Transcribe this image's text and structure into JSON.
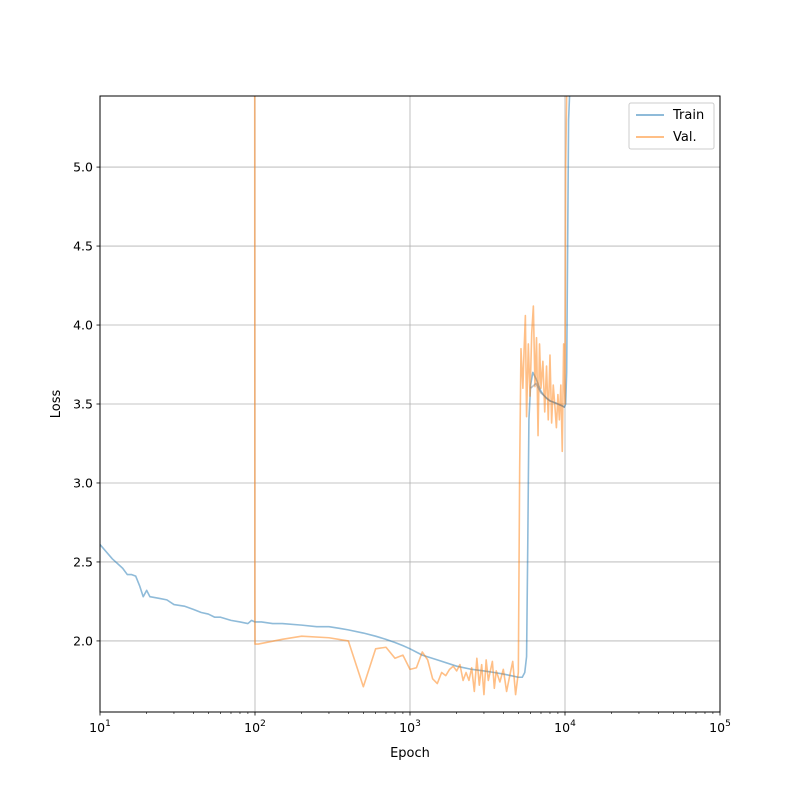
{
  "chart_data": {
    "type": "line",
    "title": "",
    "xlabel": "Epoch",
    "ylabel": "Loss",
    "xscale": "log",
    "xlim": [
      10,
      100000
    ],
    "ylim": [
      1.55,
      5.45
    ],
    "grid": true,
    "legend_position": "top-right",
    "x_ticks": [
      {
        "value": 10,
        "base": "10",
        "exp": "1"
      },
      {
        "value": 100,
        "base": "10",
        "exp": "2"
      },
      {
        "value": 1000,
        "base": "10",
        "exp": "3"
      },
      {
        "value": 10000,
        "base": "10",
        "exp": "4"
      },
      {
        "value": 100000,
        "base": "10",
        "exp": "5"
      }
    ],
    "y_ticks": [
      "2.0",
      "2.5",
      "3.0",
      "3.5",
      "4.0",
      "4.5",
      "5.0"
    ],
    "series": [
      {
        "name": "Train",
        "color": "#1f77b4",
        "opacity": 0.5,
        "points": [
          [
            10,
            2.61
          ],
          [
            12,
            2.52
          ],
          [
            14,
            2.46
          ],
          [
            15,
            2.42
          ],
          [
            16,
            2.42
          ],
          [
            17,
            2.41
          ],
          [
            18,
            2.35
          ],
          [
            19,
            2.28
          ],
          [
            20,
            2.32
          ],
          [
            21,
            2.28
          ],
          [
            24,
            2.27
          ],
          [
            27,
            2.26
          ],
          [
            30,
            2.23
          ],
          [
            35,
            2.22
          ],
          [
            40,
            2.2
          ],
          [
            45,
            2.18
          ],
          [
            50,
            2.17
          ],
          [
            55,
            2.15
          ],
          [
            60,
            2.15
          ],
          [
            70,
            2.13
          ],
          [
            80,
            2.12
          ],
          [
            90,
            2.11
          ],
          [
            95,
            2.13
          ],
          [
            100,
            2.12
          ],
          [
            110,
            2.12
          ],
          [
            130,
            2.11
          ],
          [
            150,
            2.11
          ],
          [
            200,
            2.1
          ],
          [
            250,
            2.09
          ],
          [
            300,
            2.09
          ],
          [
            350,
            2.08
          ],
          [
            400,
            2.07
          ],
          [
            500,
            2.05
          ],
          [
            600,
            2.03
          ],
          [
            700,
            2.01
          ],
          [
            800,
            1.99
          ],
          [
            900,
            1.97
          ],
          [
            1000,
            1.95
          ],
          [
            1200,
            1.91
          ],
          [
            1500,
            1.88
          ],
          [
            2000,
            1.84
          ],
          [
            2500,
            1.82
          ],
          [
            3000,
            1.81
          ],
          [
            3500,
            1.8
          ],
          [
            4000,
            1.79
          ],
          [
            4500,
            1.78
          ],
          [
            5000,
            1.77
          ],
          [
            5300,
            1.77
          ],
          [
            5500,
            1.8
          ],
          [
            5650,
            1.9
          ],
          [
            5750,
            2.6
          ],
          [
            5850,
            3.4
          ],
          [
            6000,
            3.62
          ],
          [
            6200,
            3.7
          ],
          [
            6500,
            3.66
          ],
          [
            7000,
            3.58
          ],
          [
            7500,
            3.54
          ],
          [
            8000,
            3.52
          ],
          [
            8500,
            3.51
          ],
          [
            9000,
            3.5
          ],
          [
            9500,
            3.49
          ],
          [
            9900,
            3.48
          ],
          [
            10100,
            3.5
          ],
          [
            10250,
            3.7
          ],
          [
            10400,
            4.5
          ],
          [
            10550,
            5.3
          ],
          [
            10700,
            5.45
          ]
        ]
      },
      {
        "name": "Val.",
        "color": "#ff7f0e",
        "opacity": 0.5,
        "points": [
          [
            99.6,
            5.45
          ],
          [
            99.8,
            2.3
          ],
          [
            100,
            1.98
          ],
          [
            105,
            1.98
          ],
          [
            150,
            2.01
          ],
          [
            200,
            2.03
          ],
          [
            300,
            2.02
          ],
          [
            400,
            2.0
          ],
          [
            500,
            1.71
          ],
          [
            600,
            1.95
          ],
          [
            700,
            1.96
          ],
          [
            800,
            1.89
          ],
          [
            900,
            1.91
          ],
          [
            1000,
            1.82
          ],
          [
            1100,
            1.83
          ],
          [
            1200,
            1.93
          ],
          [
            1300,
            1.88
          ],
          [
            1400,
            1.76
          ],
          [
            1500,
            1.73
          ],
          [
            1600,
            1.8
          ],
          [
            1700,
            1.78
          ],
          [
            1800,
            1.82
          ],
          [
            1900,
            1.84
          ],
          [
            2000,
            1.81
          ],
          [
            2100,
            1.85
          ],
          [
            2200,
            1.75
          ],
          [
            2300,
            1.8
          ],
          [
            2400,
            1.75
          ],
          [
            2500,
            1.83
          ],
          [
            2600,
            1.68
          ],
          [
            2700,
            1.89
          ],
          [
            2800,
            1.72
          ],
          [
            2900,
            1.85
          ],
          [
            3000,
            1.66
          ],
          [
            3100,
            1.88
          ],
          [
            3200,
            1.75
          ],
          [
            3400,
            1.87
          ],
          [
            3500,
            1.7
          ],
          [
            3600,
            1.81
          ],
          [
            3800,
            1.74
          ],
          [
            4000,
            1.82
          ],
          [
            4200,
            1.68
          ],
          [
            4400,
            1.78
          ],
          [
            4600,
            1.87
          ],
          [
            4800,
            1.66
          ],
          [
            5000,
            1.8
          ],
          [
            5100,
            3.1
          ],
          [
            5200,
            3.85
          ],
          [
            5350,
            3.6
          ],
          [
            5450,
            3.85
          ],
          [
            5550,
            4.06
          ],
          [
            5650,
            3.42
          ],
          [
            5800,
            3.88
          ],
          [
            5950,
            3.55
          ],
          [
            6100,
            3.95
          ],
          [
            6250,
            4.12
          ],
          [
            6400,
            3.61
          ],
          [
            6550,
            3.92
          ],
          [
            6700,
            3.3
          ],
          [
            6850,
            3.88
          ],
          [
            7000,
            3.6
          ],
          [
            7200,
            3.77
          ],
          [
            7400,
            3.45
          ],
          [
            7600,
            3.74
          ],
          [
            7800,
            3.4
          ],
          [
            8000,
            3.81
          ],
          [
            8200,
            3.38
          ],
          [
            8400,
            3.62
          ],
          [
            8600,
            3.49
          ],
          [
            8800,
            3.35
          ],
          [
            9000,
            3.56
          ],
          [
            9200,
            3.4
          ],
          [
            9400,
            3.62
          ],
          [
            9600,
            3.2
          ],
          [
            9800,
            3.88
          ],
          [
            10000,
            3.5
          ],
          [
            10100,
            5.0
          ],
          [
            10250,
            5.45
          ]
        ]
      },
      {
        "name": "",
        "color": "#7f7f7f",
        "opacity": 0.5,
        "points": [
          [
            6000,
            3.6
          ],
          [
            6500,
            3.63
          ],
          [
            7000,
            3.57
          ],
          [
            8000,
            3.52
          ],
          [
            9000,
            3.5
          ],
          [
            10000,
            3.48
          ]
        ]
      }
    ],
    "legend": [
      {
        "label": "Train",
        "color": "#1f77b4"
      },
      {
        "label": "Val.",
        "color": "#ff7f0e"
      }
    ]
  }
}
